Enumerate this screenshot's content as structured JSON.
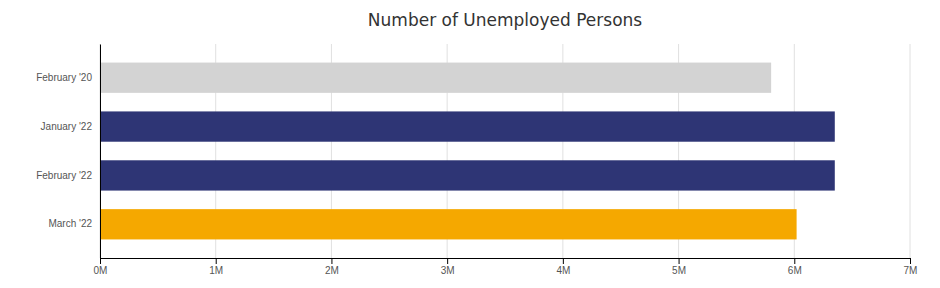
{
  "chart_data": {
    "type": "bar",
    "orientation": "horizontal",
    "title": "Number of Unemployed Persons",
    "categories": [
      "February '20",
      "January '22",
      "February '22",
      "March '22"
    ],
    "values": [
      5800000,
      6350000,
      6350000,
      6020000
    ],
    "colors": [
      "#d3d3d3",
      "#2e3575",
      "#2e3575",
      "#f5a800"
    ],
    "xlim": [
      0,
      7000000
    ],
    "xticks": [
      {
        "value": 0,
        "label": "0M"
      },
      {
        "value": 1000000,
        "label": "1M"
      },
      {
        "value": 2000000,
        "label": "2M"
      },
      {
        "value": 3000000,
        "label": "3M"
      },
      {
        "value": 4000000,
        "label": "4M"
      },
      {
        "value": 5000000,
        "label": "5M"
      },
      {
        "value": 6000000,
        "label": "6M"
      },
      {
        "value": 7000000,
        "label": "7M"
      }
    ],
    "grid": true
  }
}
